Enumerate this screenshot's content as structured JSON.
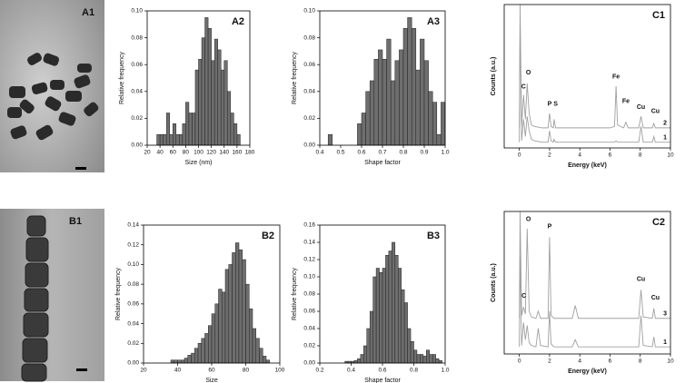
{
  "images": [
    {
      "label": "A1"
    },
    {
      "label": "B1"
    }
  ],
  "chart_data": [
    {
      "type": "histogram",
      "label": "A2",
      "xlabel": "Size (nm)",
      "ylabel": "Relative frequency",
      "color": "#6e6e6e",
      "bins": [
        35,
        40,
        45,
        50,
        55,
        60,
        65,
        70,
        75,
        80,
        85,
        90,
        95,
        100,
        105,
        110,
        115,
        120,
        125,
        130,
        135,
        140,
        145,
        150,
        155,
        160,
        165
      ],
      "values": [
        0.008,
        0.008,
        0.008,
        0.024,
        0.008,
        0.016,
        0.008,
        0.008,
        0.016,
        0.032,
        0.024,
        0.024,
        0.056,
        0.064,
        0.08,
        0.095,
        0.087,
        0.063,
        0.079,
        0.071,
        0.056,
        0.063,
        0.04,
        0.024,
        0.016,
        0.008
      ],
      "xlim": [
        20,
        180
      ],
      "xticks": [
        20,
        40,
        60,
        80,
        100,
        120,
        140,
        160,
        180
      ],
      "ylim": [
        0,
        0.1
      ],
      "yticks": [
        {
          "value": 0,
          "label": "0.00"
        },
        0.02,
        0.04,
        0.06,
        0.08,
        {
          "value": 0.1,
          "label": "0.10"
        }
      ]
    },
    {
      "type": "histogram",
      "label": "A3",
      "xlabel": "Shape factor",
      "ylabel": "Relative frequency",
      "color": "#6e6e6e",
      "bins": [
        0.44,
        0.46,
        0.48,
        0.5,
        0.52,
        0.54,
        0.56,
        0.58,
        0.6,
        0.62,
        0.64,
        0.66,
        0.68,
        0.7,
        0.72,
        0.74,
        0.76,
        0.78,
        0.8,
        0.82,
        0.84,
        0.86,
        0.88,
        0.9,
        0.92,
        0.94,
        0.96,
        0.98,
        1.0
      ],
      "values": [
        0.008,
        0,
        0,
        0,
        0,
        0,
        0,
        0.016,
        0.024,
        0.04,
        0.048,
        0.064,
        0.071,
        0.064,
        0.079,
        0.048,
        0.063,
        0.071,
        0.087,
        0.095,
        0.087,
        0.056,
        0.079,
        0.063,
        0.04,
        0.032,
        0.008,
        0.032
      ],
      "xlim": [
        0.4,
        1.0
      ],
      "xticks": [
        0.4,
        0.5,
        0.6,
        0.7,
        0.8,
        0.9,
        {
          "value": 1,
          "label": "1.0"
        }
      ],
      "ylim": [
        0,
        0.1
      ],
      "yticks": [
        {
          "value": 0,
          "label": "0.00"
        },
        0.02,
        0.04,
        0.06,
        0.08,
        {
          "value": 0.1,
          "label": "0.10"
        }
      ]
    },
    {
      "type": "line",
      "label": "C1",
      "xlabel": "Energy (keV)",
      "ylabel": "Counts (a.u.)",
      "x": [
        0,
        0.05,
        0.15,
        0.28,
        0.4,
        0.52,
        0.65,
        0.8,
        1.0,
        1.5,
        1.9,
        2.0,
        2.1,
        2.25,
        2.3,
        2.4,
        3,
        4,
        5,
        6,
        6.3,
        6.4,
        6.5,
        6.9,
        7.05,
        7.2,
        7.9,
        8.05,
        8.2,
        8.8,
        8.9,
        9.0,
        10
      ],
      "series": [
        {
          "name": "2",
          "color": "#a0a0a0",
          "values": [
            14,
            100,
            15,
            37,
            20,
            45,
            24,
            16,
            15,
            14,
            14,
            24,
            15,
            14,
            20,
            14,
            14,
            14,
            14,
            14,
            15,
            43,
            16,
            14,
            18,
            14,
            14,
            22,
            14,
            14,
            17,
            14,
            14
          ]
        },
        {
          "name": "1",
          "color": "#a0a0a0",
          "values": [
            4,
            85,
            5,
            20,
            8,
            22,
            12,
            6,
            5,
            4,
            4,
            12,
            5,
            4,
            6,
            4,
            4,
            4,
            4,
            4,
            4,
            5,
            4,
            4,
            4,
            4,
            4,
            15,
            4,
            4,
            8,
            4,
            4
          ]
        }
      ],
      "annotations": [
        {
          "text": "C",
          "x": 0.28,
          "y": 40
        },
        {
          "text": "O",
          "x": 0.6,
          "y": 50
        },
        {
          "text": "P",
          "x": 2.0,
          "y": 28
        },
        {
          "text": "S",
          "x": 2.4,
          "y": 28
        },
        {
          "text": "Fe",
          "x": 6.4,
          "y": 47
        },
        {
          "text": "Fe",
          "x": 7.05,
          "y": 30
        },
        {
          "text": "Cu",
          "x": 8.05,
          "y": 26
        },
        {
          "text": "Cu",
          "x": 9.0,
          "y": 23
        }
      ],
      "xlim": [
        -1,
        10
      ],
      "xticks": [
        0,
        2,
        4,
        6,
        8,
        10
      ],
      "ylim": [
        0,
        100
      ]
    },
    {
      "type": "histogram",
      "label": "B2",
      "xlabel": "Size",
      "ylabel": "Relative frequency",
      "color": "#6e6e6e",
      "bins": [
        36,
        38,
        40,
        42,
        44,
        46,
        48,
        50,
        52,
        54,
        56,
        58,
        60,
        62,
        64,
        66,
        68,
        70,
        72,
        74,
        76,
        78,
        80,
        82,
        84,
        86,
        88,
        90,
        92,
        94
      ],
      "values": [
        0.003,
        0.003,
        0.003,
        0.003,
        0.005,
        0.008,
        0.01,
        0.015,
        0.02,
        0.025,
        0.03,
        0.038,
        0.05,
        0.06,
        0.075,
        0.072,
        0.095,
        0.1,
        0.112,
        0.122,
        0.115,
        0.105,
        0.08,
        0.055,
        0.035,
        0.025,
        0.015,
        0.007,
        0.003
      ],
      "xlim": [
        20,
        100
      ],
      "xticks": [
        20,
        40,
        60,
        80,
        100
      ],
      "ylim": [
        0,
        0.14
      ],
      "yticks": [
        {
          "value": 0,
          "label": "0.00"
        },
        0.02,
        0.04,
        0.06,
        0.08,
        {
          "value": 0.1,
          "label": "0.10"
        },
        0.12,
        0.14
      ]
    },
    {
      "type": "histogram",
      "label": "B3",
      "xlabel": "Shape factor",
      "ylabel": "Relative frequency",
      "color": "#6e6e6e",
      "bins": [
        0.36,
        0.38,
        0.4,
        0.42,
        0.44,
        0.46,
        0.48,
        0.5,
        0.52,
        0.54,
        0.56,
        0.58,
        0.6,
        0.62,
        0.64,
        0.66,
        0.68,
        0.7,
        0.72,
        0.74,
        0.76,
        0.78,
        0.8,
        0.82,
        0.84,
        0.86,
        0.88,
        0.9,
        0.92,
        0.94,
        0.96,
        0.98
      ],
      "values": [
        0.002,
        0.002,
        0.002,
        0.003,
        0.005,
        0.01,
        0.02,
        0.04,
        0.06,
        0.1,
        0.11,
        0.105,
        0.11,
        0.125,
        0.13,
        0.14,
        0.125,
        0.11,
        0.085,
        0.07,
        0.04,
        0.025,
        0.015,
        0.01,
        0.01,
        0.008,
        0.015,
        0.01,
        0.01,
        0.005,
        0.003
      ],
      "xlim": [
        0.2,
        1.0
      ],
      "xticks": [
        0.2,
        0.4,
        0.6,
        0.8,
        {
          "value": 1,
          "label": "1.0"
        }
      ],
      "ylim": [
        0,
        0.16
      ],
      "yticks": [
        {
          "value": 0,
          "label": "0.00"
        },
        0.02,
        0.04,
        0.06,
        0.08,
        {
          "value": 0.1,
          "label": "0.10"
        },
        0.12,
        0.14,
        0.16
      ]
    },
    {
      "type": "line",
      "label": "C2",
      "xlabel": "Energy (keV)",
      "ylabel": "Counts (a.u.)",
      "x": [
        0,
        0.05,
        0.15,
        0.28,
        0.4,
        0.52,
        0.65,
        0.8,
        1.1,
        1.25,
        1.4,
        1.9,
        2.0,
        2.1,
        2.3,
        3.5,
        3.7,
        3.9,
        5,
        7.9,
        8.05,
        8.2,
        8.8,
        8.9,
        9.0,
        10
      ],
      "series": [
        {
          "name": "3",
          "color": "#a0a0a0",
          "values": [
            25,
            100,
            27,
            33,
            28,
            88,
            30,
            26,
            25,
            30,
            25,
            25,
            82,
            27,
            25,
            25,
            34,
            25,
            25,
            25,
            45,
            26,
            25,
            32,
            25,
            25
          ]
        },
        {
          "name": "1",
          "color": "#a0a0a0",
          "values": [
            5,
            70,
            6,
            22,
            10,
            20,
            8,
            6,
            5,
            18,
            6,
            5,
            30,
            7,
            5,
            5,
            10,
            5,
            5,
            5,
            27,
            6,
            5,
            12,
            5,
            5
          ]
        }
      ],
      "annotations": [
        {
          "text": "C",
          "x": 0.3,
          "y": 38
        },
        {
          "text": "O",
          "x": 0.6,
          "y": 92
        },
        {
          "text": "P",
          "x": 2.0,
          "y": 87
        },
        {
          "text": "Cu",
          "x": 8.05,
          "y": 50
        },
        {
          "text": "Cu",
          "x": 9.0,
          "y": 37
        }
      ],
      "xlim": [
        -1,
        10
      ],
      "xticks": [
        0,
        2,
        4,
        6,
        8,
        10
      ],
      "ylim": [
        0,
        100
      ]
    }
  ]
}
